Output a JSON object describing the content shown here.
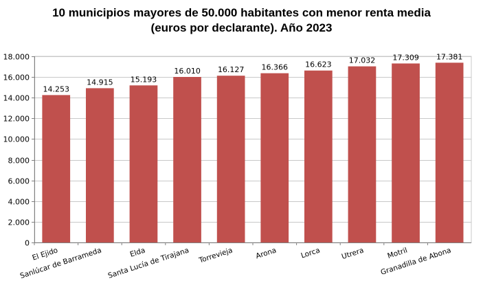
{
  "chart_data": {
    "type": "bar",
    "title_line1": "10 municipios mayores de 50.000 habitantes con menor renta media",
    "title_line2": "(euros por declarante). Año 2023",
    "categories": [
      "El Ejido",
      "Sanlúcar de Barrameda",
      "Elda",
      "Santa Lucía de Tirajana",
      "Torrevieja",
      "Arona",
      "Lorca",
      "Utrera",
      "Motril",
      "Granadilla de Abona"
    ],
    "values": [
      14253,
      14915,
      15193,
      16010,
      16127,
      16366,
      16623,
      17032,
      17309,
      17381
    ],
    "data_labels": [
      "14.253",
      "14.915",
      "15.193",
      "16.010",
      "16.127",
      "16.366",
      "16.623",
      "17.032",
      "17.309",
      "17.381"
    ],
    "y_ticks": [
      0,
      2000,
      4000,
      6000,
      8000,
      10000,
      12000,
      14000,
      16000,
      18000
    ],
    "y_tick_labels": [
      "0",
      "2.000",
      "4.000",
      "6.000",
      "8.000",
      "10.000",
      "12.000",
      "14.000",
      "16.000",
      "18.000"
    ],
    "ylim": [
      0,
      18000
    ],
    "grid": true,
    "bar_color": "#c0504d",
    "grid_color": "#c8c8c8"
  }
}
